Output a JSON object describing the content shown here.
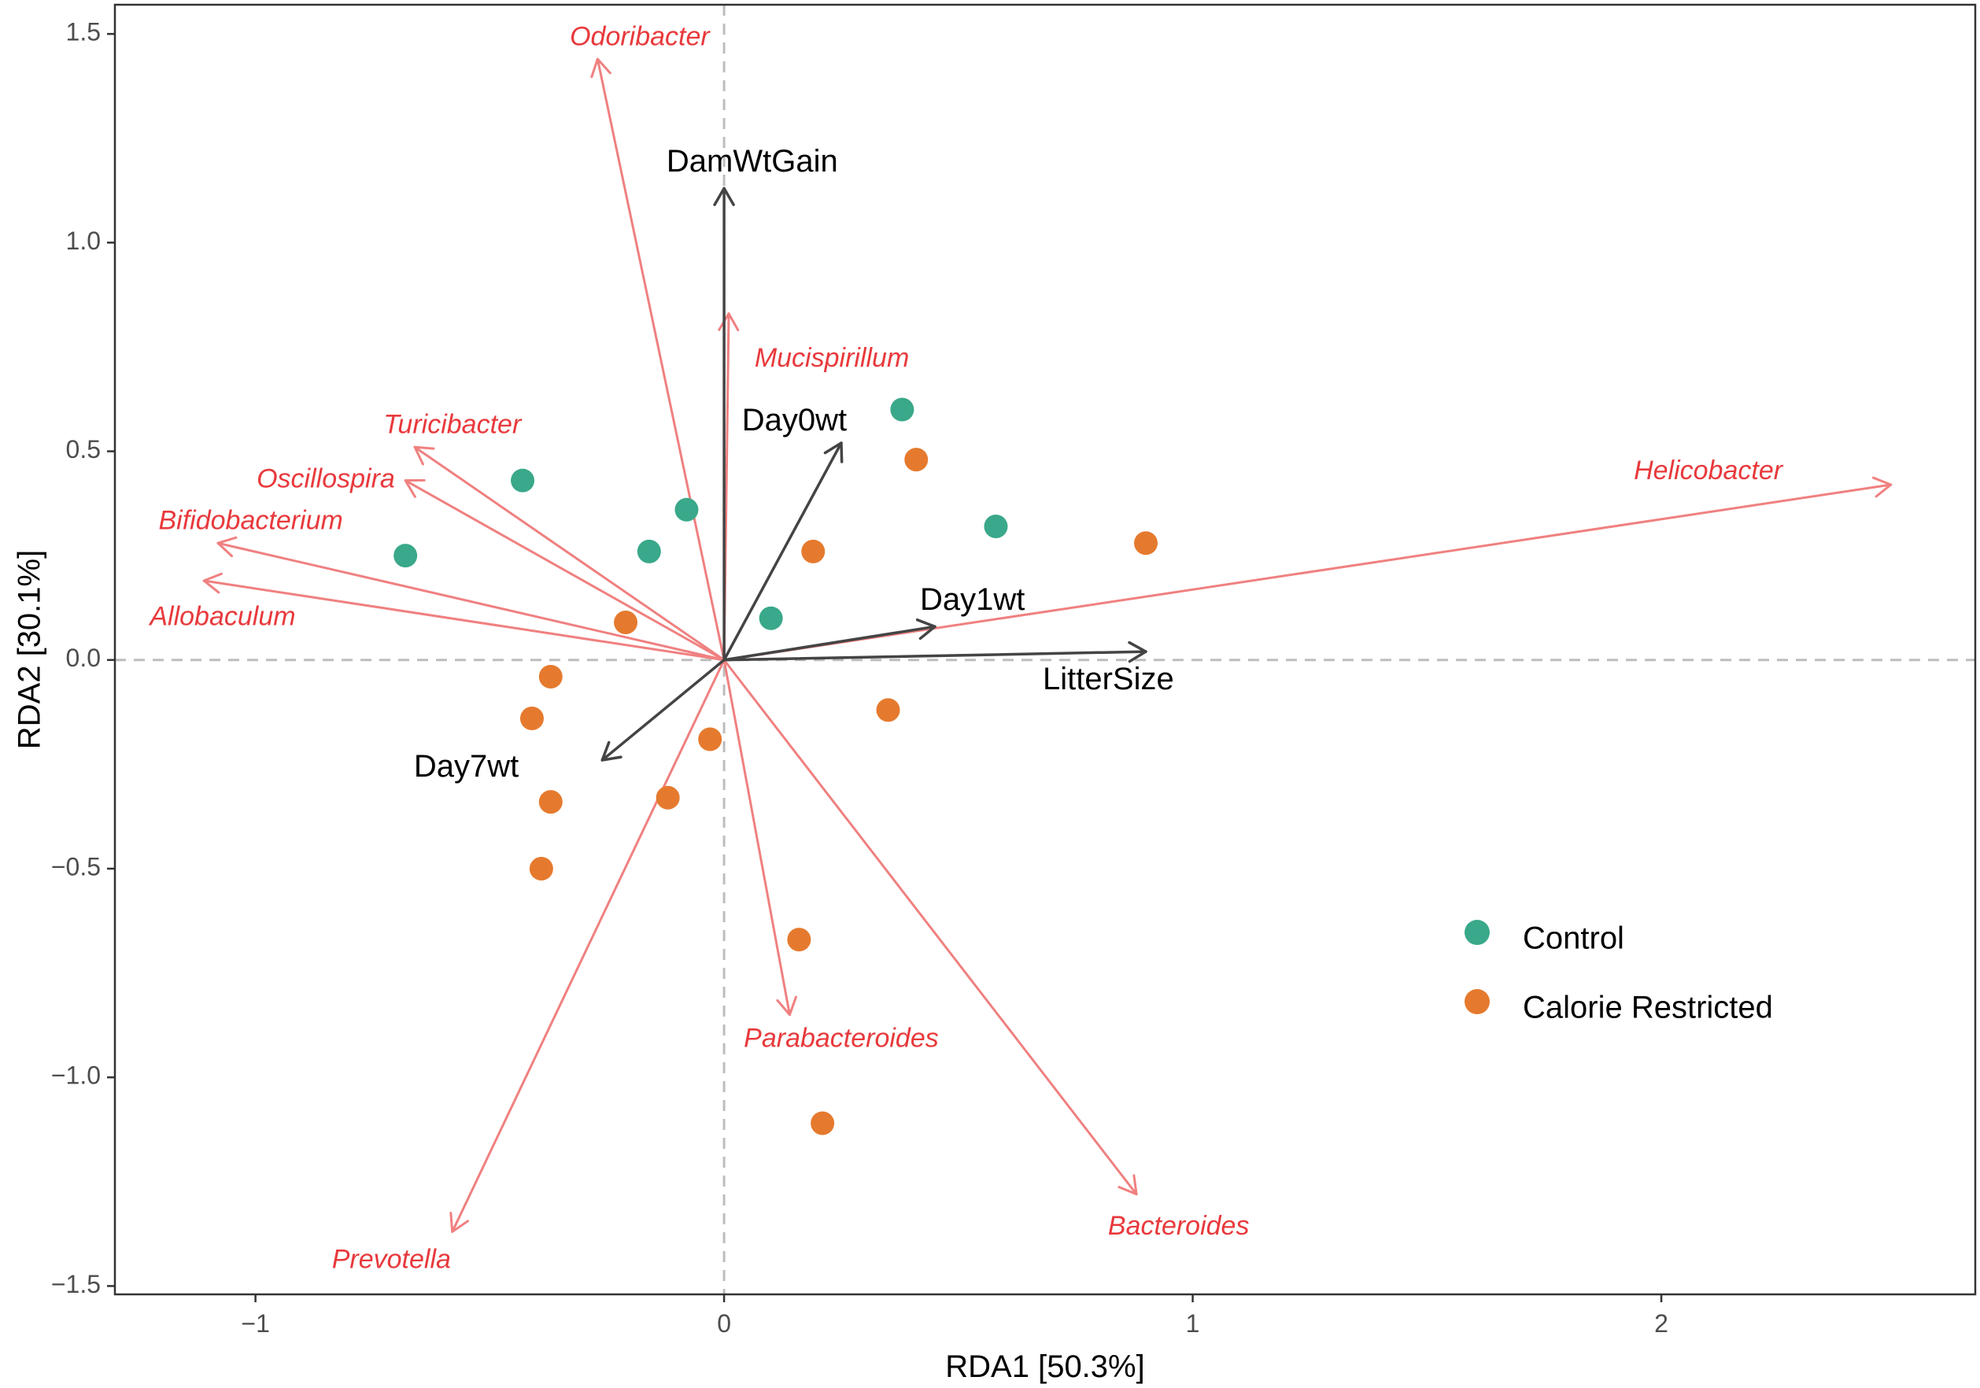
{
  "chart_data": {
    "type": "scatter",
    "title": "",
    "xlabel": "RDA1 [50.3%]",
    "ylabel": "RDA2 [30.1%]",
    "xlim": [
      -1.3,
      2.67
    ],
    "ylim": [
      -1.52,
      1.57
    ],
    "x_ticks": [
      -1,
      0,
      1,
      2
    ],
    "y_ticks": [
      -1.5,
      -1.0,
      -0.5,
      0.0,
      0.5,
      1.0,
      1.5
    ],
    "x_tick_labels": [
      "−1",
      "0",
      "1",
      "2"
    ],
    "y_tick_labels": [
      "−1.5",
      "−1.0",
      "−0.5",
      "0.0",
      "0.5",
      "1.0",
      "1.5"
    ],
    "grid": false,
    "reference_lines": {
      "x": 0,
      "y": 0,
      "style": "dashed",
      "color": "#bdbdbd"
    },
    "legend_position": "bottom-right",
    "series": [
      {
        "name": "Control",
        "color": "#3aa88a",
        "points": [
          {
            "x": 0.38,
            "y": 0.6
          },
          {
            "x": 0.58,
            "y": 0.32
          },
          {
            "x": -0.43,
            "y": 0.43
          },
          {
            "x": -0.68,
            "y": 0.25
          },
          {
            "x": -0.08,
            "y": 0.36
          },
          {
            "x": -0.16,
            "y": 0.26
          },
          {
            "x": 0.1,
            "y": 0.1
          }
        ]
      },
      {
        "name": "Calorie Restricted",
        "color": "#e57a2e",
        "points": [
          {
            "x": 0.41,
            "y": 0.48
          },
          {
            "x": 0.9,
            "y": 0.28
          },
          {
            "x": 0.19,
            "y": 0.26
          },
          {
            "x": -0.21,
            "y": 0.09
          },
          {
            "x": -0.37,
            "y": -0.04
          },
          {
            "x": -0.41,
            "y": -0.14
          },
          {
            "x": 0.35,
            "y": -0.12
          },
          {
            "x": -0.03,
            "y": -0.19
          },
          {
            "x": -0.37,
            "y": -0.34
          },
          {
            "x": -0.12,
            "y": -0.33
          },
          {
            "x": -0.39,
            "y": -0.5
          },
          {
            "x": 0.16,
            "y": -0.67
          },
          {
            "x": 0.21,
            "y": -1.11
          }
        ]
      }
    ],
    "env_vectors": [
      {
        "label": "DamWtGain",
        "x": 0.0,
        "y": 1.13,
        "lx": 0.06,
        "ly": 1.19
      },
      {
        "label": "Day0wt",
        "x": 0.25,
        "y": 0.52,
        "lx": 0.15,
        "ly": 0.57
      },
      {
        "label": "Day1wt",
        "x": 0.45,
        "y": 0.08,
        "lx": 0.53,
        "ly": 0.14
      },
      {
        "label": "LitterSize",
        "x": 0.9,
        "y": 0.02,
        "lx": 0.82,
        "ly": -0.05
      },
      {
        "label": "Day7wt",
        "x": -0.26,
        "y": -0.24,
        "lx": -0.55,
        "ly": -0.26
      }
    ],
    "species_vectors": [
      {
        "label": "Odoribacter",
        "x": -0.27,
        "y": 1.44,
        "lx": -0.18,
        "ly": 1.49
      },
      {
        "label": "Mucispirillum",
        "x": 0.01,
        "y": 0.83,
        "lx": 0.23,
        "ly": 0.72
      },
      {
        "label": "Turicibacter",
        "x": -0.66,
        "y": 0.51,
        "lx": -0.58,
        "ly": 0.56
      },
      {
        "label": "Oscillospira",
        "x": -0.68,
        "y": 0.43,
        "lx": -0.85,
        "ly": 0.43
      },
      {
        "label": "Bifidobacterium",
        "x": -1.08,
        "y": 0.28,
        "lx": -1.01,
        "ly": 0.33
      },
      {
        "label": "Allobaculum",
        "x": -1.11,
        "y": 0.19,
        "lx": -1.07,
        "ly": 0.1
      },
      {
        "label": "Helicobacter",
        "x": 2.49,
        "y": 0.42,
        "lx": 2.1,
        "ly": 0.45
      },
      {
        "label": "Parabacteroides",
        "x": 0.14,
        "y": -0.85,
        "lx": 0.25,
        "ly": -0.91
      },
      {
        "label": "Bacteroides",
        "x": 0.88,
        "y": -1.28,
        "lx": 0.97,
        "ly": -1.36
      },
      {
        "label": "Prevotella",
        "x": -0.58,
        "y": -1.37,
        "lx": -0.71,
        "ly": -1.44
      }
    ],
    "colors": {
      "species": "#f08080",
      "species_text": "#e8393c",
      "env": "#444444",
      "env_text": "#000000",
      "axis": "#333333",
      "tick_text": "#4d4d4d"
    }
  }
}
